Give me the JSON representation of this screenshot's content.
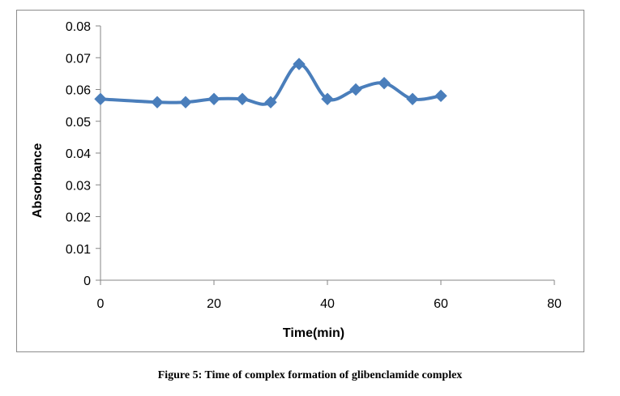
{
  "caption": "Figure 5: Time of complex formation of glibenclamide complex",
  "chart_data": {
    "type": "line",
    "smooth": true,
    "xlabel": "Time(min)",
    "ylabel": "Absorbance",
    "xlim": [
      0,
      80
    ],
    "ylim": [
      0,
      0.08
    ],
    "xticks": [
      0,
      20,
      40,
      60,
      80
    ],
    "yticks": [
      0,
      0.01,
      0.02,
      0.03,
      0.04,
      0.05,
      0.06,
      0.07,
      0.08
    ],
    "xtick_labels": [
      "0",
      "20",
      "40",
      "60",
      "80"
    ],
    "ytick_labels": [
      "0",
      "0.01",
      "0.02",
      "0.03",
      "0.04",
      "0.05",
      "0.06",
      "0.07",
      "0.08"
    ],
    "grid": false,
    "legend": "none",
    "series": [
      {
        "color": "#4a7ebb",
        "marker": "diamond",
        "x": [
          0,
          10,
          15,
          20,
          25,
          30,
          35,
          40,
          45,
          50,
          55,
          60
        ],
        "y": [
          0.057,
          0.056,
          0.056,
          0.057,
          0.057,
          0.056,
          0.068,
          0.057,
          0.06,
          0.062,
          0.057,
          0.058
        ]
      }
    ]
  }
}
